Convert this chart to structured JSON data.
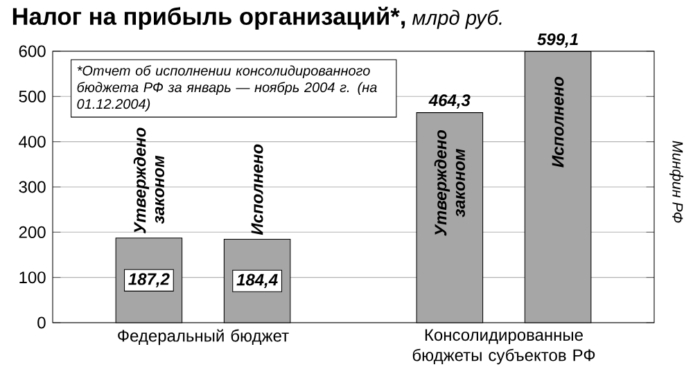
{
  "chart_data": {
    "type": "bar",
    "title": "Налог на прибыль организаций*,",
    "subtitle": "млрд руб.",
    "categories": [
      "Федеральный бюджет",
      "Консолидированные бюджеты субъектов РФ"
    ],
    "series": [
      {
        "name": "Утверждено законом",
        "color": "#a6a6a6",
        "values": [
          187.2,
          464.3
        ],
        "value_labels": [
          "187,2",
          "464,3"
        ]
      },
      {
        "name": "Исполнено",
        "color": "#a6a6a6",
        "values": [
          184.4,
          599.1
        ],
        "value_labels": [
          "184,4",
          "599,1"
        ]
      }
    ],
    "ylim": [
      0,
      600
    ],
    "yticks": [
      0,
      100,
      200,
      300,
      400,
      500,
      600
    ],
    "grid": "y",
    "annotations": [
      "*Отчет об исполнении консолидированного бюджета РФ за январь — ноябрь 2004 г. (на 01.12.2004)",
      "Минфин РФ"
    ]
  }
}
